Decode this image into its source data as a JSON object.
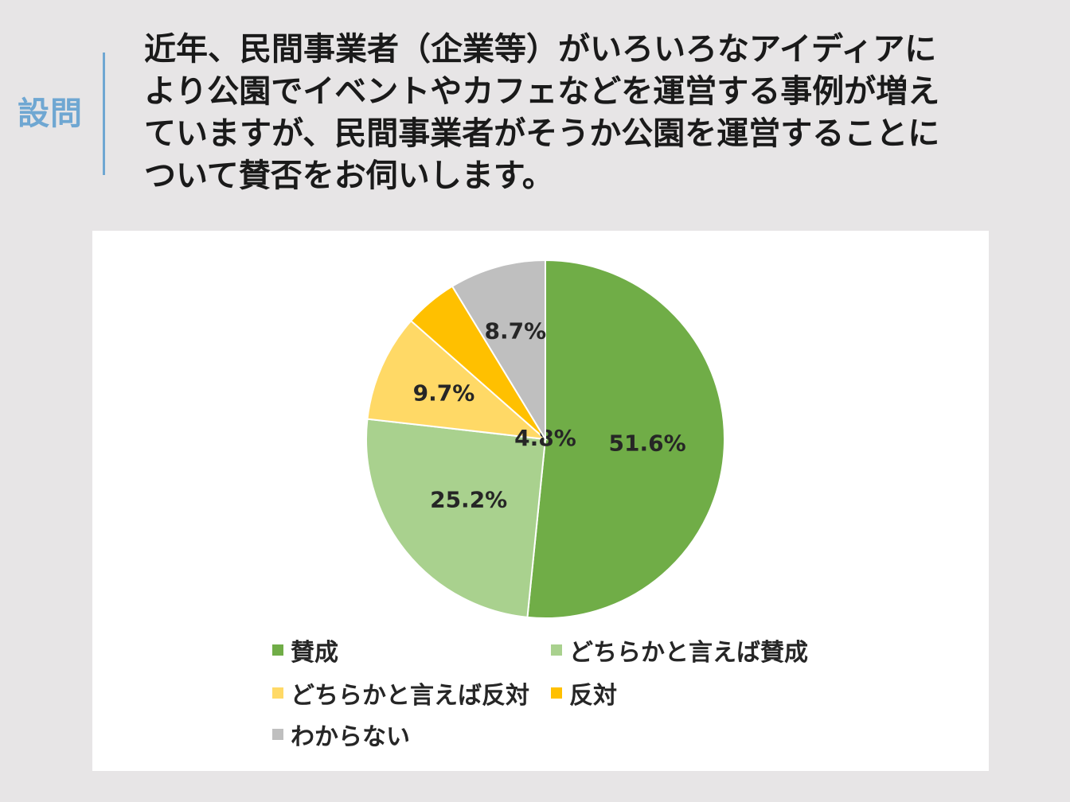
{
  "header": {
    "tag": "設問",
    "question": "近年、民間事業者（企業等）がいろいろなアイディアに\nより公園でイベントやカフェなどを運営する事例が増え\nていますが、民間事業者がそうか公園を運営することに\nついて賛否をお伺いします。"
  },
  "colors": {
    "tag_accent": "#6fa7d2"
  },
  "chart_data": {
    "type": "pie",
    "start_angle_deg": 0,
    "direction": "clockwise",
    "slices": [
      {
        "label": "賛成",
        "value": 51.6,
        "value_label": "51.6%",
        "color": "#70ad47"
      },
      {
        "label": "どちらかと言えば賛成",
        "value": 25.2,
        "value_label": "25.2%",
        "color": "#a9d18e"
      },
      {
        "label": "どちらかと言えば反対",
        "value": 9.7,
        "value_label": "9.7%",
        "color": "#ffd966"
      },
      {
        "label": "反対",
        "value": 4.8,
        "value_label": "4.8%",
        "color": "#ffc000"
      },
      {
        "label": "わからない",
        "value": 8.7,
        "value_label": "8.7%",
        "color": "#bfbfbf"
      }
    ],
    "legend_position": "bottom"
  }
}
